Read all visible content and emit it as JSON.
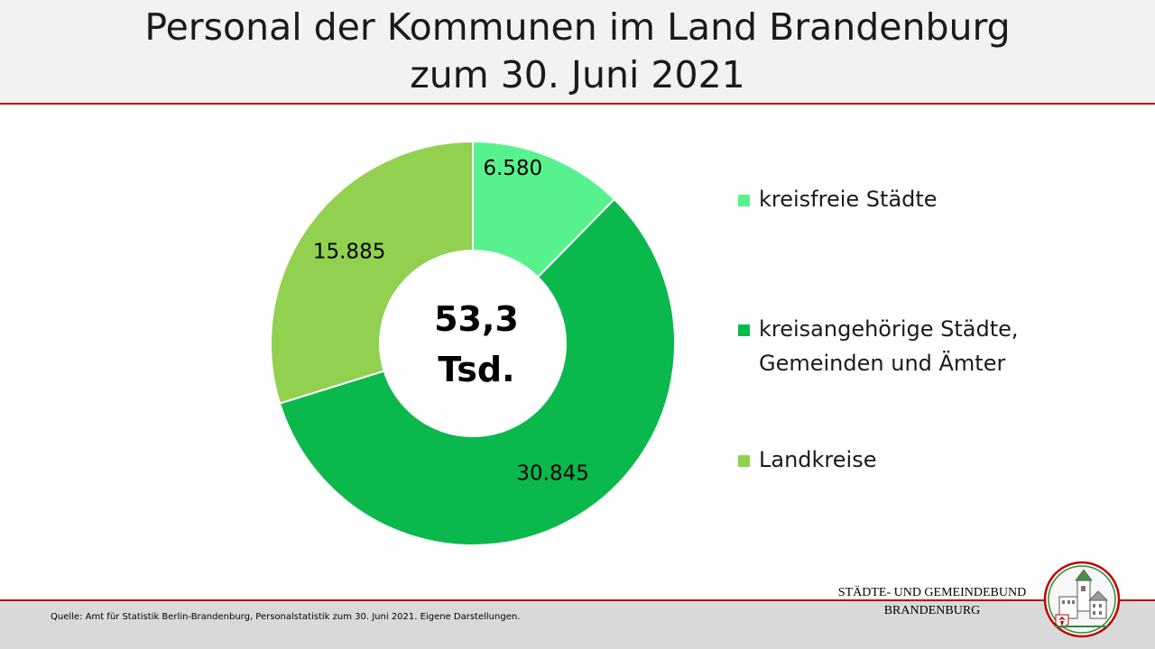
{
  "title": {
    "line1": "Personal der Kommunen im Land Brandenburg",
    "line2": "zum 30. Juni 2021"
  },
  "center_label": {
    "value": "53,3",
    "unit": "Tsd."
  },
  "chart_data": {
    "type": "pie",
    "variant": "donut",
    "title": "Personal der Kommunen im Land Brandenburg zum 30. Juni 2021",
    "total_label": "53,3 Tsd.",
    "start_angle": "12 o'clock",
    "direction": "clockwise",
    "legend_position": "right",
    "slices": [
      {
        "name": "kreisfreie Städte",
        "value": 6580,
        "label": "6.580",
        "color": "#57f28e"
      },
      {
        "name": "kreisangehörige Städte,\nGemeinden und Ämter",
        "value": 30845,
        "label": "30.845",
        "color": "#0ab84c"
      },
      {
        "name": "Landkreise",
        "value": 15885,
        "label": "15.885",
        "color": "#92d050"
      }
    ]
  },
  "footer": {
    "source": "Quelle: Amt für Statistik Berlin-Brandenburg, Personalstatistik zum 30. Juni 2021. Eigene Darstellungen."
  },
  "organization": {
    "line1": "STÄDTE-  UND GEMEINDEBUND",
    "line2": "BRANDENBURG"
  },
  "colors": {
    "accent_line": "#c00000",
    "header_bg": "#f2f2f2",
    "footer_bg": "#d9d9d9"
  }
}
